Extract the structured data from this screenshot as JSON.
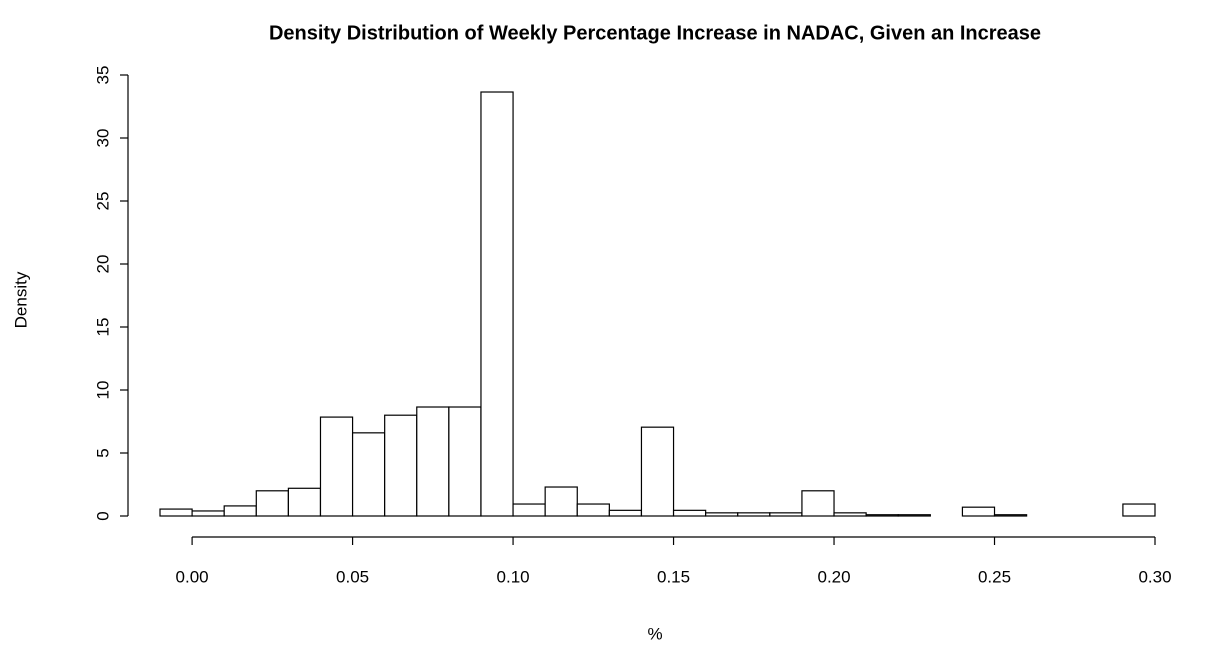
{
  "chart_data": {
    "type": "histogram",
    "title": "Density Distribution of Weekly Percentage Increase in NADAC, Given an Increase",
    "x_label": "%",
    "y_label": "Density",
    "bins": [
      -0.01,
      0.0,
      0.01,
      0.02,
      0.03,
      0.04,
      0.05,
      0.06,
      0.07,
      0.08,
      0.09,
      0.1,
      0.11,
      0.12,
      0.13,
      0.14,
      0.15,
      0.16,
      0.17,
      0.18,
      0.19,
      0.2,
      0.21,
      0.22,
      0.23,
      0.24,
      0.25,
      0.26,
      0.27,
      0.28,
      0.29,
      0.3
    ],
    "values": [
      0.55,
      0.4,
      0.8,
      2.0,
      2.2,
      7.85,
      6.6,
      8.0,
      8.65,
      8.65,
      33.65,
      0.95,
      2.3,
      0.95,
      0.45,
      7.05,
      0.45,
      0.25,
      0.25,
      0.25,
      2.0,
      0.25,
      0.1,
      0.1,
      0,
      0.7,
      0.1,
      0,
      0,
      0,
      0.95
    ],
    "color": "#ffffff",
    "xlim": [
      -0.01,
      0.3
    ],
    "ylim": [
      0,
      35
    ],
    "xticks": [
      {
        "value": 0,
        "label": "0.00"
      },
      {
        "value": 0.05,
        "label": "0.05"
      },
      {
        "value": 0.1,
        "label": "0.10"
      },
      {
        "value": 0.15,
        "label": "0.15"
      },
      {
        "value": 0.2,
        "label": "0.20"
      },
      {
        "value": 0.25,
        "label": "0.25"
      },
      {
        "value": 0.3,
        "label": "0.30"
      }
    ],
    "yticks": [
      0,
      5,
      10,
      15,
      20,
      25,
      30,
      35
    ]
  }
}
